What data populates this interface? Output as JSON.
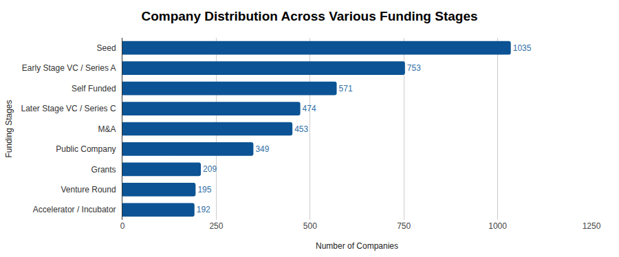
{
  "chart_data": {
    "type": "bar",
    "title": "Company Distribution Across Various Funding Stages",
    "xlabel": "Number of Companies",
    "ylabel": "Funding Stages",
    "categories": [
      "Seed",
      "Early Stage VC / Series A",
      "Self Funded",
      "Later Stage VC / Series C",
      "M&A",
      "Public Company",
      "Grants",
      "Venture Round",
      "Accelerator / Incubator"
    ],
    "values": [
      1035,
      753,
      571,
      474,
      453,
      349,
      209,
      195,
      192
    ],
    "color": "#0b5394",
    "orientation": "horizontal",
    "xlim": [
      0,
      1250
    ],
    "xticks": [
      0,
      250,
      500,
      750,
      1000,
      1250
    ],
    "grid": true,
    "data_labels": true
  }
}
